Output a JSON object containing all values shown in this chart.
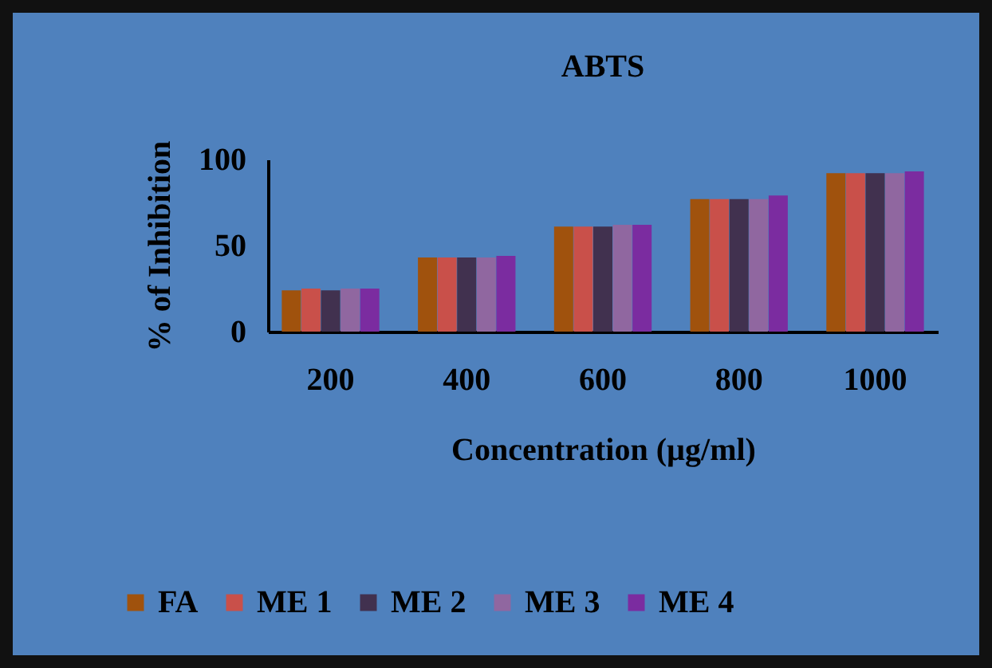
{
  "chart_data": {
    "type": "bar",
    "title": "ABTS",
    "xlabel": "Concentration (µg/ml)",
    "ylabel": "% of Inhibition",
    "categories": [
      "200",
      "400",
      "600",
      "800",
      "1000"
    ],
    "series": [
      {
        "name": "FA",
        "color": "#a0520d",
        "values": [
          24,
          43,
          61,
          77,
          92
        ]
      },
      {
        "name": "ME 1",
        "color": "#c9504a",
        "values": [
          25,
          43,
          61,
          77,
          92
        ]
      },
      {
        "name": "ME 2",
        "color": "#41314f",
        "values": [
          24,
          43,
          61,
          77,
          92
        ]
      },
      {
        "name": "ME 3",
        "color": "#9067a0",
        "values": [
          25,
          43,
          62,
          77,
          92
        ]
      },
      {
        "name": "ME 4",
        "color": "#7b2ca0",
        "values": [
          25,
          44,
          62,
          79,
          93
        ]
      }
    ],
    "ylim": [
      0,
      100
    ],
    "yticks": [
      0,
      50,
      100
    ],
    "grid": false,
    "legend": "bottom"
  }
}
